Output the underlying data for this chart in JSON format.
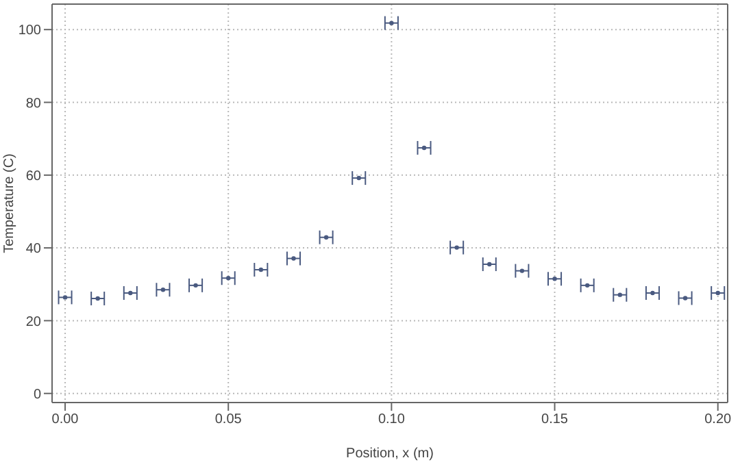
{
  "chart_data": {
    "type": "scatter",
    "xlabel": "Position, x (m)",
    "ylabel": "Temperature (C)",
    "x": [
      0,
      0.01,
      0.02,
      0.03,
      0.04,
      0.05,
      0.06,
      0.07,
      0.08,
      0.09,
      0.1,
      0.11,
      0.12,
      0.13,
      0.14,
      0.15,
      0.16,
      0.17,
      0.18,
      0.19,
      0.2
    ],
    "series": [
      {
        "color": "#4a5a80",
        "values": [
          26.4,
          26.1,
          27.6,
          28.5,
          29.7,
          31.7,
          34.0,
          37.1,
          42.9,
          59.2,
          101.8,
          67.5,
          40.1,
          35.5,
          33.7,
          31.5,
          29.7,
          27.1,
          27.6,
          26.2,
          27.6
        ],
        "xerrors": [
          0.002,
          0.002,
          0.002,
          0.002,
          0.002,
          0.002,
          0.002,
          0.002,
          0.002,
          0.002,
          0.002,
          0.002,
          0.002,
          0.002,
          0.002,
          0.002,
          0.002,
          0.002,
          0.002,
          0.002,
          0.002
        ]
      }
    ],
    "xlim": [
      -0.004,
      0.203
    ],
    "ylim": [
      -2.5,
      107
    ],
    "xticks": [
      {
        "value": 0,
        "label": "0.00"
      },
      {
        "value": 0.05,
        "label": "0.05"
      },
      {
        "value": 0.1,
        "label": "0.10"
      },
      {
        "value": 0.15,
        "label": "0.15"
      },
      {
        "value": 0.2,
        "label": "0.20"
      }
    ],
    "yticks": [
      0,
      20,
      40,
      60,
      80,
      100
    ],
    "grid": true,
    "marker": "circle"
  }
}
